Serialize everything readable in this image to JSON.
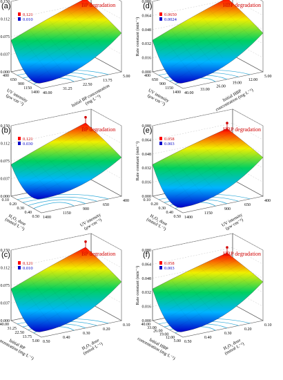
{
  "chart_data": [
    {
      "panel": "(a)",
      "type": "surface3d",
      "title": "BP degradation",
      "zlabel": "Rate constant (min⁻¹)",
      "z_ticks": [
        "0.000",
        "0.037",
        "0.075",
        "0.112",
        "0.150"
      ],
      "zlim": [
        0,
        0.15
      ],
      "legend_max": "0.121",
      "legend_min": "0.010",
      "x_label_lines": [
        "Initial BP concentration",
        "(mg·L⁻¹)"
      ],
      "x_ticks": [
        "5.00",
        "13.75",
        "22.50",
        "31.25",
        "40.00"
      ],
      "y_label_lines": [
        "UV intensity",
        "(μw·cm⁻²)"
      ],
      "y_ticks": [
        "400",
        "650",
        "900",
        "1150",
        "1400"
      ],
      "peak_value": 0.121,
      "min_value": 0.01
    },
    {
      "panel": "(b)",
      "type": "surface3d",
      "title": "BP degradation",
      "zlabel": "Rate constant (min⁻¹)",
      "z_ticks": [
        "0.000",
        "0.037",
        "0.075",
        "0.112",
        "0.150"
      ],
      "zlim": [
        0,
        0.15
      ],
      "legend_max": "0.121",
      "legend_min": "0.030",
      "x_label_lines": [
        "UV intensity",
        "(μw·cm⁻²)"
      ],
      "x_ticks": [
        "400",
        "650",
        "900",
        "1150",
        "1400"
      ],
      "y_label_lines": [
        "H₂O₂ dose",
        "(mmol·L⁻¹)"
      ],
      "y_ticks": [
        "0.10",
        "0.20",
        "0.30",
        "0.40",
        "0.50"
      ],
      "peak_value": 0.121,
      "min_value": 0.03
    },
    {
      "panel": "(c)",
      "type": "surface3d",
      "title": "BP degradation",
      "zlabel": "Rate constant (min⁻¹)",
      "z_ticks": [
        "0.000",
        "0.037",
        "0.075",
        "0.112",
        "0.150"
      ],
      "zlim": [
        0,
        0.15
      ],
      "legend_max": "0.121",
      "legend_min": "0.010",
      "x_label_lines": [
        "H₂O₂ dose",
        "(mmol·L⁻¹)"
      ],
      "x_ticks": [
        "0.10",
        "0.20",
        "0.30",
        "0.40",
        "0.50"
      ],
      "y_label_lines": [
        "Initial BP",
        "concentration (mg·L⁻¹)"
      ],
      "y_ticks": [
        "40.00",
        "31.25",
        "22.50",
        "13.75",
        "5.00"
      ],
      "peak_value": 0.121,
      "min_value": 0.01
    },
    {
      "panel": "(d)",
      "type": "surface3d",
      "title": "HBP degradation",
      "zlabel": "Rate constant (min⁻¹)",
      "z_ticks": [
        "0.000",
        "0.016",
        "0.032",
        "0.048",
        "0.064",
        "0.080"
      ],
      "zlim": [
        0,
        0.08
      ],
      "legend_max": "0.0650",
      "legend_min": "0.0024",
      "x_label_lines": [
        "Initial HBP",
        "concentration (mg·L⁻¹)"
      ],
      "x_ticks": [
        "5.00",
        "12.00",
        "19.00",
        "26.00",
        "33.00",
        "40.00"
      ],
      "y_label_lines": [
        "UV intensity",
        "(μw·cm⁻²)"
      ],
      "y_ticks": [
        "400",
        "650",
        "900",
        "1150",
        "1400"
      ],
      "peak_value": 0.065,
      "min_value": 0.0024
    },
    {
      "panel": "(e)",
      "type": "surface3d",
      "title": "HBP degradation",
      "zlabel": "Rate constant (min⁻¹)",
      "z_ticks": [
        "0.000",
        "0.016",
        "0.032",
        "0.048",
        "0.064",
        "0.080"
      ],
      "zlim": [
        0,
        0.08
      ],
      "legend_max": "0.058",
      "legend_min": "0.003",
      "x_label_lines": [
        "UV intensity",
        "(μw·cm⁻²)"
      ],
      "x_ticks": [
        "400",
        "650",
        "900",
        "1150",
        "1400"
      ],
      "y_label_lines": [
        "H₂O₂ dose",
        "(mmol·L⁻¹)"
      ],
      "y_ticks": [
        "0.10",
        "0.20",
        "0.30",
        "0.40",
        "0.50"
      ],
      "peak_value": 0.058,
      "min_value": 0.003
    },
    {
      "panel": "(f)",
      "type": "surface3d",
      "title": "HBP degradation",
      "zlabel": "Rate constant (min⁻¹)",
      "z_ticks": [
        "0.000",
        "0.016",
        "0.032",
        "0.048",
        "0.064",
        "0.080"
      ],
      "zlim": [
        0,
        0.08
      ],
      "legend_max": "0.058",
      "legend_min": "0.003",
      "x_label_lines": [
        "H₂O₂ dose",
        "(mmol·L⁻¹)"
      ],
      "x_ticks": [
        "0.10",
        "0.20",
        "0.30",
        "0.40",
        "0.50"
      ],
      "y_label_lines": [
        "Initial HBP",
        "concentration (mg·L⁻¹)"
      ],
      "y_ticks": [
        "40.00",
        "33.00",
        "26.00",
        "19.00",
        "12.00",
        "5.00"
      ],
      "peak_value": 0.058,
      "min_value": 0.003
    }
  ],
  "colors": {
    "title": "#d10000",
    "legend_max": "#d10000",
    "legend_min": "#0000c8",
    "contour": "#2aa8d8",
    "frame": "#555555"
  }
}
